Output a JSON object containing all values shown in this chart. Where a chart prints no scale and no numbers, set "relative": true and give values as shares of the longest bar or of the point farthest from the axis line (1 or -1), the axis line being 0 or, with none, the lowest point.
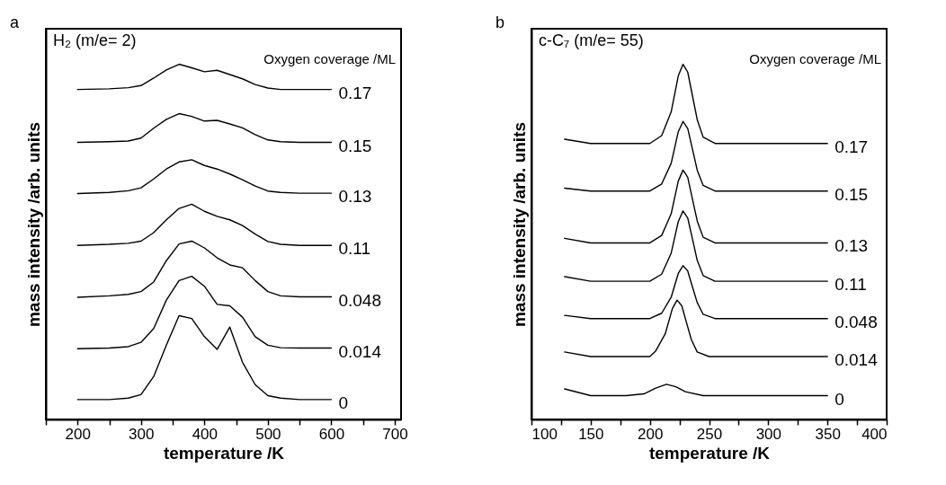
{
  "chart_data": [
    {
      "type": "line",
      "relative": true,
      "xlabel": "temperature /K",
      "ylabel": "mass intensity /arb. units",
      "legend_title": "Oxygen coverage /ML",
      "annotations": [
        "a",
        "H₂ (m/e= 2)"
      ],
      "legend": false,
      "xlim": [
        150,
        710
      ],
      "xticks": [
        {
          "value": 150,
          "label": null
        },
        200,
        {
          "value": 250,
          "label": null
        },
        300,
        {
          "value": 350,
          "label": null
        },
        400,
        {
          "value": 450,
          "label": null
        },
        500,
        {
          "value": 550,
          "label": null
        },
        600,
        {
          "value": 650,
          "label": null
        },
        700
      ],
      "x": [
        200,
        250,
        280,
        300,
        320,
        340,
        360,
        380,
        400,
        420,
        440,
        460,
        480,
        500,
        520,
        550,
        600
      ],
      "series": [
        {
          "name": "0.17",
          "color": "#000000",
          "values": [
            0.929,
            0.931,
            0.934,
            0.94,
            0.961,
            0.984,
            1.0,
            0.99,
            0.979,
            0.983,
            0.971,
            0.959,
            0.943,
            0.933,
            0.929,
            0.929,
            0.929
          ]
        },
        {
          "name": "0.15",
          "color": "#000000",
          "values": [
            0.78,
            0.782,
            0.784,
            0.792,
            0.82,
            0.845,
            0.861,
            0.853,
            0.84,
            0.842,
            0.832,
            0.821,
            0.802,
            0.787,
            0.782,
            0.78,
            0.78
          ]
        },
        {
          "name": "0.13",
          "color": "#000000",
          "values": [
            0.636,
            0.639,
            0.644,
            0.652,
            0.677,
            0.705,
            0.725,
            0.731,
            0.715,
            0.705,
            0.691,
            0.675,
            0.657,
            0.643,
            0.639,
            0.637,
            0.637
          ]
        },
        {
          "name": "0.11",
          "color": "#000000",
          "values": [
            0.49,
            0.493,
            0.496,
            0.502,
            0.526,
            0.562,
            0.594,
            0.606,
            0.586,
            0.572,
            0.562,
            0.546,
            0.522,
            0.501,
            0.493,
            0.49,
            0.49
          ]
        },
        {
          "name": "0.048",
          "color": "#000000",
          "values": [
            0.344,
            0.348,
            0.352,
            0.36,
            0.387,
            0.447,
            0.494,
            0.502,
            0.483,
            0.455,
            0.435,
            0.427,
            0.391,
            0.36,
            0.348,
            0.345,
            0.345
          ]
        },
        {
          "name": "0.014",
          "color": "#000000",
          "values": [
            0.199,
            0.201,
            0.205,
            0.217,
            0.256,
            0.336,
            0.391,
            0.403,
            0.375,
            0.324,
            0.32,
            0.288,
            0.233,
            0.209,
            0.202,
            0.201,
            0.201
          ]
        },
        {
          "name": "0",
          "color": "#000000",
          "values": [
            0.056,
            0.056,
            0.06,
            0.07,
            0.121,
            0.209,
            0.292,
            0.284,
            0.233,
            0.197,
            0.26,
            0.161,
            0.098,
            0.067,
            0.06,
            0.056,
            0.056
          ]
        }
      ]
    },
    {
      "type": "line",
      "relative": true,
      "xlabel": "temperature /K",
      "ylabel": "mass intensity /arb. units",
      "legend_title": "Oxygen coverage /ML",
      "annotations": [
        "b",
        "c-C₇ (m/e= 55)"
      ],
      "legend": false,
      "xlim": [
        100,
        400
      ],
      "xticks": [
        100,
        {
          "value": 125,
          "label": null
        },
        150,
        {
          "value": 175,
          "label": null
        },
        200,
        {
          "value": 225,
          "label": null
        },
        250,
        {
          "value": 275,
          "label": null
        },
        300,
        {
          "value": 325,
          "label": null
        },
        350,
        {
          "value": 375,
          "label": null
        },
        400
      ],
      "x": [
        128,
        150,
        180,
        200,
        210,
        218,
        224,
        228,
        232,
        236,
        240,
        245,
        255,
        300,
        350
      ],
      "series": [
        {
          "name": "0.17",
          "color": "#000000",
          "values": [
            0.789,
            0.777,
            0.777,
            0.777,
            0.799,
            0.866,
            0.967,
            1.0,
            0.978,
            0.911,
            0.844,
            0.795,
            0.777,
            0.777,
            0.777
          ]
        },
        {
          "name": "0.15",
          "color": "#000000",
          "values": [
            0.651,
            0.643,
            0.643,
            0.643,
            0.663,
            0.721,
            0.81,
            0.839,
            0.819,
            0.761,
            0.702,
            0.659,
            0.643,
            0.643,
            0.643
          ]
        },
        {
          "name": "0.13",
          "color": "#000000",
          "values": [
            0.51,
            0.497,
            0.497,
            0.497,
            0.518,
            0.579,
            0.671,
            0.702,
            0.682,
            0.62,
            0.559,
            0.513,
            0.497,
            0.497,
            0.497
          ]
        },
        {
          "name": "0.11",
          "color": "#000000",
          "values": [
            0.402,
            0.389,
            0.389,
            0.389,
            0.409,
            0.468,
            0.557,
            0.587,
            0.567,
            0.508,
            0.448,
            0.405,
            0.389,
            0.389,
            0.389
          ]
        },
        {
          "name": "0.048",
          "color": "#000000",
          "values": [
            0.293,
            0.284,
            0.284,
            0.284,
            0.299,
            0.344,
            0.411,
            0.433,
            0.418,
            0.373,
            0.329,
            0.296,
            0.284,
            0.284,
            0.284
          ]
        },
        {
          "name": "0.014",
          "color": "#000000",
          "x": [
            128,
            150,
            180,
            200,
            205,
            213,
            219,
            223,
            227,
            231,
            235,
            240,
            250,
            300,
            350
          ],
          "values": [
            0.19,
            0.177,
            0.177,
            0.177,
            0.193,
            0.241,
            0.312,
            0.336,
            0.32,
            0.272,
            0.225,
            0.19,
            0.177,
            0.177,
            0.177
          ]
        },
        {
          "name": "0",
          "color": "#000000",
          "x": [
            128,
            150,
            180,
            195,
            205,
            214,
            222,
            230,
            245,
            300,
            350
          ],
          "values": [
            0.086,
            0.067,
            0.067,
            0.072,
            0.088,
            0.099,
            0.092,
            0.078,
            0.067,
            0.067,
            0.067
          ]
        }
      ]
    }
  ]
}
